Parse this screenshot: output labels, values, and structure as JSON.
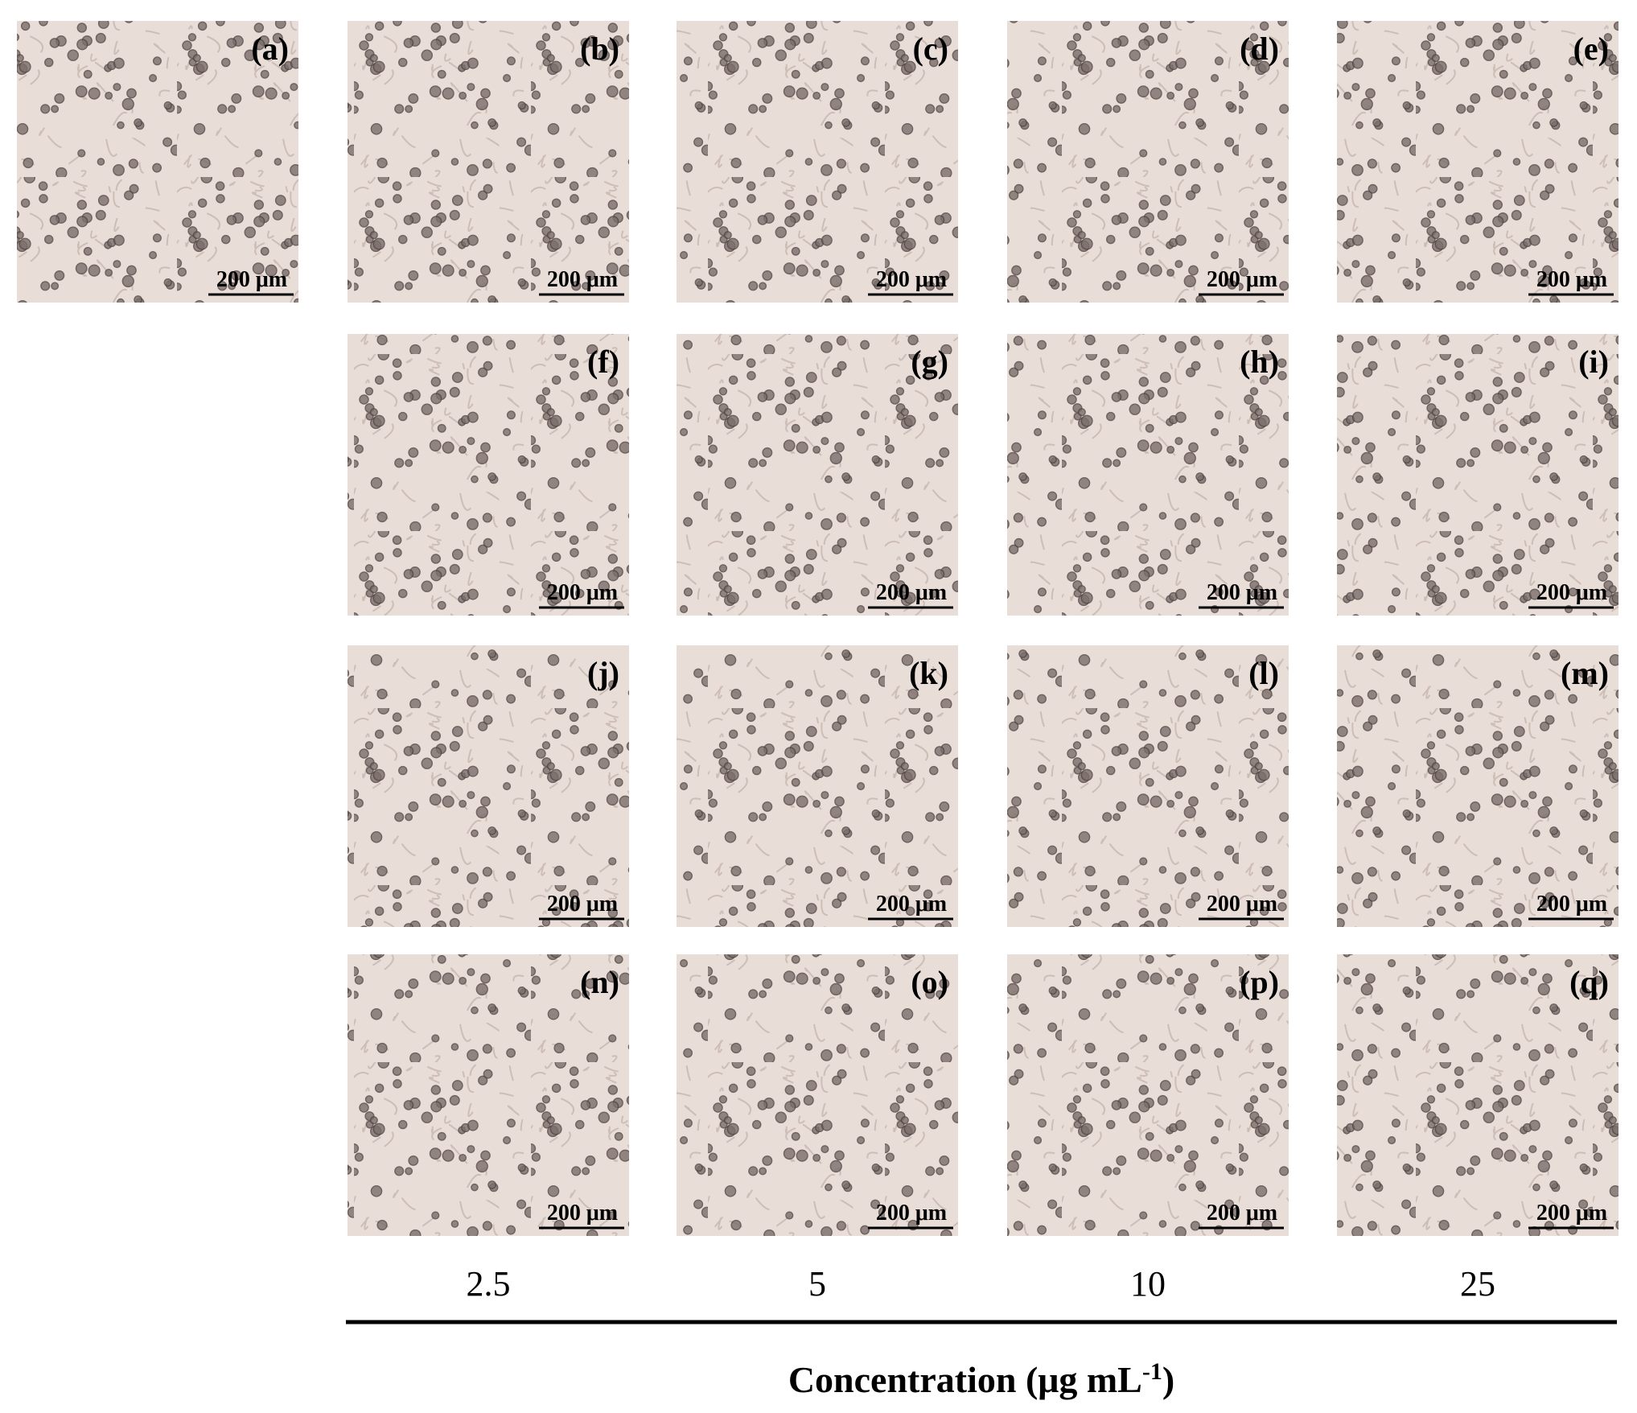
{
  "panels": [
    {
      "label": "(a)",
      "scale_bar": "200 μm"
    },
    {
      "label": "(b)",
      "scale_bar": "200 μm"
    },
    {
      "label": "(c)",
      "scale_bar": "200 μm"
    },
    {
      "label": "(d)",
      "scale_bar": "200 μm"
    },
    {
      "label": "(e)",
      "scale_bar": "200 μm"
    },
    {
      "label": "(f)",
      "scale_bar": "200 μm"
    },
    {
      "label": "(g)",
      "scale_bar": "200 μm"
    },
    {
      "label": "(h)",
      "scale_bar": "200 μm"
    },
    {
      "label": "(i)",
      "scale_bar": "200 μm"
    },
    {
      "label": "(j)",
      "scale_bar": "200 μm"
    },
    {
      "label": "(k)",
      "scale_bar": "200 μm"
    },
    {
      "label": "(l)",
      "scale_bar": "200 μm"
    },
    {
      "label": "(m)",
      "scale_bar": "200 μm"
    },
    {
      "label": "(n)",
      "scale_bar": "200 μm"
    },
    {
      "label": "(o)",
      "scale_bar": "200 μm"
    },
    {
      "label": "(p)",
      "scale_bar": "200 μm"
    },
    {
      "label": "(q)",
      "scale_bar": "200 μm"
    }
  ],
  "concentrations": [
    "2.5",
    "5",
    "10",
    "25"
  ],
  "axis_title": {
    "text": "Concentration (μg mL",
    "superscript": "-1",
    "closing": ")"
  }
}
